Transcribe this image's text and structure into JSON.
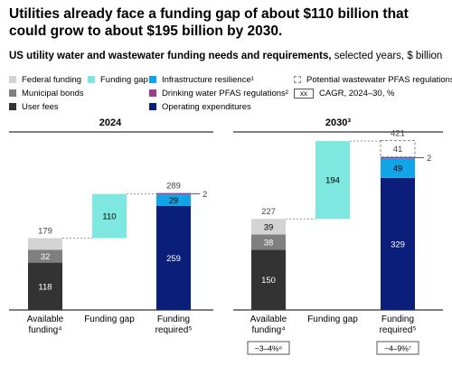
{
  "title": "Utilities already face a funding gap of about $110 billion that could grow to about $195 billion by 2030.",
  "subtitle_bold": "US utility water and wastewater funding needs and requirements,",
  "subtitle_rest": " selected years, $ billion",
  "legend": {
    "federal": "Federal funding",
    "municipal": "Municipal bonds",
    "userfees": "User fees",
    "gap": "Funding gap",
    "resilience": "Infrastructure resilience¹",
    "pfas_drinking": "Drinking water PFAS regulations²",
    "opex": "Operating expenditures",
    "pfas_wastewater": "Potential wastewater PFAS regulations",
    "cagr_box": "xx",
    "cagr_label": "CAGR, 2024–30, %"
  },
  "colors": {
    "federal": "#d3d3d3",
    "municipal": "#7f7f7f",
    "userfees": "#333333",
    "gap": "#7de7e0",
    "resilience": "#11a5e8",
    "pfas_drinking": "#9b3a8e",
    "opex": "#0b1f7a"
  },
  "chart_data": [
    {
      "type": "bar",
      "subtype": "waterfall",
      "title": "2024",
      "categories": [
        "Available funding⁴",
        "Funding gap",
        "Funding required⁵"
      ],
      "series": [
        {
          "name": "User fees",
          "values": [
            118,
            null,
            null
          ]
        },
        {
          "name": "Municipal bonds",
          "values": [
            32,
            null,
            null
          ]
        },
        {
          "name": "Federal funding",
          "values": [
            29,
            null,
            null
          ]
        },
        {
          "name": "Funding gap",
          "values": [
            null,
            110,
            null
          ]
        },
        {
          "name": "Operating expenditures",
          "values": [
            null,
            null,
            259
          ]
        },
        {
          "name": "Infrastructure resilience¹",
          "values": [
            null,
            null,
            29
          ]
        },
        {
          "name": "Drinking water PFAS regulations²",
          "values": [
            null,
            null,
            2
          ]
        }
      ],
      "totals": [
        179,
        null,
        289
      ],
      "segment_labels": {
        "userfees": "118",
        "municipal": "32",
        "gap": "110",
        "opex": "259",
        "resilience": "29",
        "pfas_drinking": "2"
      },
      "total_labels": {
        "available": "179",
        "required": "289"
      },
      "cagr": {}
    },
    {
      "type": "bar",
      "subtype": "waterfall",
      "title": "2030³",
      "categories": [
        "Available funding⁴",
        "Funding gap",
        "Funding required⁵"
      ],
      "series": [
        {
          "name": "User fees",
          "values": [
            150,
            null,
            null
          ]
        },
        {
          "name": "Municipal bonds",
          "values": [
            38,
            null,
            null
          ]
        },
        {
          "name": "Federal funding",
          "values": [
            39,
            null,
            null
          ]
        },
        {
          "name": "Funding gap",
          "values": [
            null,
            194,
            null
          ]
        },
        {
          "name": "Operating expenditures",
          "values": [
            null,
            null,
            329
          ]
        },
        {
          "name": "Infrastructure resilience¹",
          "values": [
            null,
            null,
            49
          ]
        },
        {
          "name": "Drinking water PFAS regulations²",
          "values": [
            null,
            null,
            2
          ]
        },
        {
          "name": "Potential wastewater PFAS regulations",
          "values": [
            null,
            null,
            41
          ]
        }
      ],
      "totals": [
        227,
        null,
        421
      ],
      "segment_labels": {
        "userfees": "150",
        "municipal": "38",
        "federal": "39",
        "gap": "194",
        "opex": "329",
        "resilience": "49",
        "pfas_drinking": "2",
        "pfas_wastewater": "41"
      },
      "total_labels": {
        "available": "227",
        "required": "421"
      },
      "cagr": {
        "available": "~3–4%⁶",
        "required": "~4–9%⁷"
      }
    }
  ],
  "panel_headers": [
    "2024",
    "2030³"
  ],
  "category_labels": {
    "available_l1": "Available",
    "available_l2": "funding⁴",
    "gap": "Funding gap",
    "required_l1": "Funding",
    "required_l2": "required⁵"
  }
}
